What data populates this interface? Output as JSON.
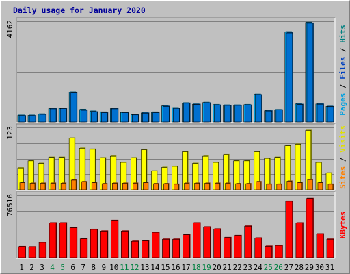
{
  "chart_data": {
    "type": "bar",
    "title": "Daily usage for January 2020",
    "title_color": "#000099",
    "categories": [
      "1",
      "2",
      "3",
      "4",
      "5",
      "6",
      "7",
      "8",
      "9",
      "10",
      "11",
      "12",
      "13",
      "14",
      "15",
      "16",
      "17",
      "18",
      "19",
      "20",
      "21",
      "22",
      "23",
      "24",
      "25",
      "26",
      "27",
      "28",
      "29",
      "30",
      "31"
    ],
    "weekend_days": [
      "4",
      "5",
      "11",
      "12",
      "18",
      "19",
      "25",
      "26"
    ],
    "weekday_label_color": "#000000",
    "weekend_label_color": "#008040",
    "panels": [
      {
        "max_label": "4162",
        "ymax": 4162,
        "axis_label_parts": [
          {
            "text": "Pages",
            "color": "#00a0e0"
          },
          {
            "text": " / ",
            "color": "#000000"
          },
          {
            "text": "Files",
            "color": "#0040c0"
          },
          {
            "text": " / ",
            "color": "#000000"
          },
          {
            "text": "Hits",
            "color": "#008080"
          }
        ],
        "series": [
          {
            "name": "Hits",
            "color": "#00a0e0",
            "values": [
              270,
              270,
              320,
              550,
              560,
              1230,
              510,
              440,
              400,
              550,
              390,
              300,
              370,
              400,
              660,
              580,
              780,
              730,
              800,
              710,
              690,
              690,
              710,
              1140,
              460,
              500,
              3720,
              740,
              4110,
              740,
              640
            ]
          },
          {
            "name": "Files",
            "color": "#0070d0",
            "values": [
              250,
              250,
              310,
              540,
              550,
              1200,
              480,
              410,
              380,
              540,
              380,
              290,
              360,
              380,
              640,
              560,
              770,
              720,
              780,
              690,
              680,
              680,
              690,
              1120,
              450,
              490,
              3680,
              720,
              4080,
              730,
              630
            ]
          }
        ]
      },
      {
        "max_label": "123",
        "ymax": 123,
        "axis_label_parts": [
          {
            "text": "Sites",
            "color": "#ff8000"
          },
          {
            "text": " / ",
            "color": "#000000"
          },
          {
            "text": "Visits",
            "color": "#e0e000"
          }
        ],
        "series": [
          {
            "name": "Visits",
            "color": "#ffff00",
            "values": [
              43,
              57,
              52,
              64,
              64,
              102,
              82,
              80,
              63,
              66,
              54,
              63,
              79,
              37,
              44,
              46,
              75,
              52,
              66,
              54,
              69,
              57,
              57,
              75,
              62,
              64,
              87,
              90,
              117,
              54,
              33
            ]
          },
          {
            "name": "Sites",
            "color": "#ff8000",
            "values": [
              14,
              13,
              13,
              13,
              13,
              19,
              16,
              14,
              12,
              13,
              13,
              13,
              14,
              12,
              12,
              11,
              13,
              13,
              13,
              13,
              13,
              12,
              12,
              16,
              11,
              11,
              17,
              14,
              20,
              14,
              11
            ]
          }
        ]
      },
      {
        "max_label": "76516",
        "ymax": 76516,
        "axis_label_parts": [
          {
            "text": "KBytes",
            "color": "#ff0000"
          }
        ],
        "series": [
          {
            "name": "KBytes",
            "color": "#ff0000",
            "values": [
              13500,
              13200,
              18500,
              42500,
              42500,
              36500,
              23000,
              34500,
              32500,
              45500,
              32500,
              20000,
              20500,
              31000,
              22500,
              22500,
              28000,
              42500,
              37500,
              35000,
              24500,
              27000,
              38500,
              24000,
              14000,
              15000,
              69000,
              42500,
              72500,
              29000,
              22500
            ]
          }
        ]
      }
    ]
  }
}
